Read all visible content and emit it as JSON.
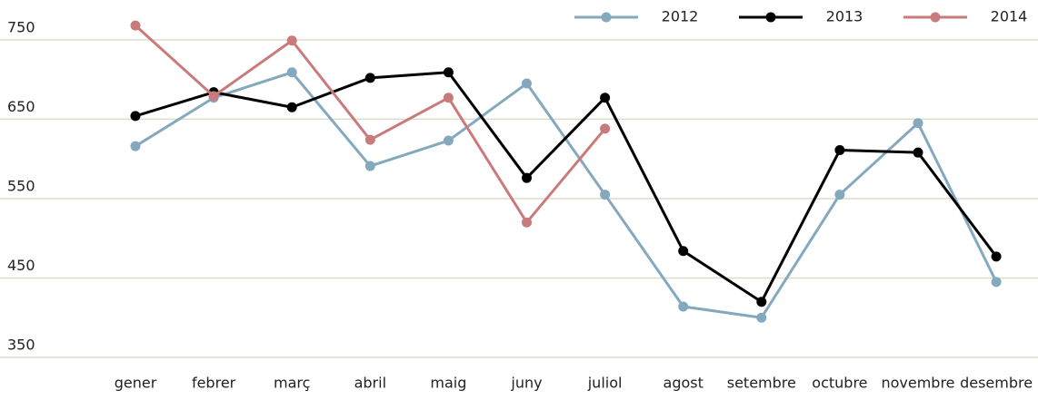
{
  "chart_data": {
    "type": "line",
    "categories": [
      "gener",
      "febrer",
      "març",
      "abril",
      "maig",
      "juny",
      "juliol",
      "agost",
      "setembre",
      "octubre",
      "novembre",
      "desembre"
    ],
    "series": [
      {
        "name": "2012",
        "color": "#84a9bf",
        "values": [
          616,
          677,
          709,
          591,
          623,
          695,
          555,
          414,
          400,
          555,
          645,
          445
        ]
      },
      {
        "name": "2013",
        "color": "#000000",
        "values": [
          654,
          684,
          665,
          702,
          709,
          576,
          677,
          484,
          420,
          611,
          608,
          477
        ]
      },
      {
        "name": "2014",
        "color": "#c97b7c",
        "values": [
          768,
          679,
          749,
          624,
          677,
          520,
          638,
          null,
          null,
          null,
          null,
          null
        ]
      }
    ],
    "ylim": [
      350,
      775
    ],
    "yticks": [
      350,
      450,
      550,
      650,
      750
    ],
    "grid": true,
    "legend": "top-right"
  }
}
